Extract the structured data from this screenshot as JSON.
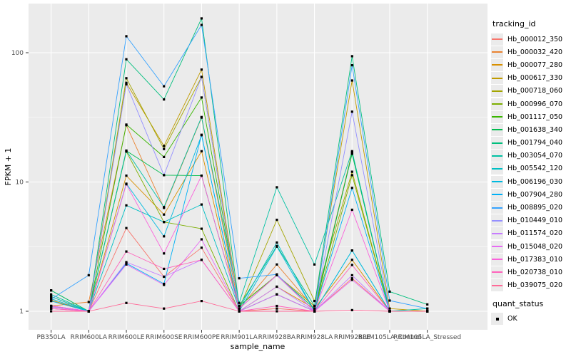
{
  "chart_data": {
    "type": "line",
    "title": "",
    "xlabel": "sample_name",
    "ylabel": "FPKM + 1",
    "y_scale": "log10",
    "y_ticks": [
      1,
      10,
      100
    ],
    "y_minor": [
      3.1623,
      31.623
    ],
    "ylim": [
      0.93,
      230
    ],
    "grid": true,
    "panel_bg": "#ebebeb",
    "grid_color": "#ffffff",
    "marker": "black-square",
    "legend_position": "right",
    "categories": [
      "PB350LA",
      "RRIM600LA",
      "RRIM600LE",
      "RRIM600SE",
      "RRIM600PE",
      "RRIM901LA",
      "RRIM928BA",
      "RRIM928LA",
      "RRIM928LE",
      "RRIM105LA_Control",
      "RRIM105LA_Stressed"
    ],
    "series": [
      {
        "name": "Hb_000012_350",
        "color": "#F8766D",
        "values": [
          1.05,
          1.0,
          4.4,
          1.85,
          3.1,
          1.0,
          1.05,
          1.0,
          1.8,
          1.0,
          1.0
        ]
      },
      {
        "name": "Hb_000032_420",
        "color": "#EA8331",
        "values": [
          1.1,
          1.18,
          27.5,
          6.3,
          31.5,
          1.05,
          2.3,
          1.05,
          17.0,
          1.0,
          1.0
        ]
      },
      {
        "name": "Hb_000077_280",
        "color": "#D89000",
        "values": [
          1.22,
          1.0,
          11.2,
          5.6,
          17.3,
          1.0,
          1.55,
          1.05,
          2.5,
          1.0,
          1.0
        ]
      },
      {
        "name": "Hb_000617_330",
        "color": "#C09B00",
        "values": [
          1.3,
          1.0,
          58.5,
          19.0,
          74.0,
          1.1,
          1.9,
          1.1,
          61.0,
          1.05,
          1.0
        ]
      },
      {
        "name": "Hb_000718_060",
        "color": "#A3A500",
        "values": [
          1.2,
          1.0,
          63.5,
          18.0,
          65.0,
          1.05,
          5.1,
          1.2,
          12.0,
          1.0,
          1.0
        ]
      },
      {
        "name": "Hb_000996_070",
        "color": "#7CAE00",
        "values": [
          1.45,
          1.0,
          17.2,
          4.9,
          4.35,
          1.0,
          1.35,
          1.0,
          11.3,
          1.0,
          1.0
        ]
      },
      {
        "name": "Hb_001117_050",
        "color": "#39B600",
        "values": [
          1.08,
          1.0,
          27.8,
          15.6,
          45.0,
          1.1,
          1.9,
          1.0,
          16.8,
          1.0,
          1.0
        ]
      },
      {
        "name": "Hb_001638_340",
        "color": "#00BB4E",
        "values": [
          1.1,
          1.0,
          17.4,
          11.3,
          11.2,
          1.05,
          1.9,
          1.05,
          16.5,
          1.0,
          1.0
        ]
      },
      {
        "name": "Hb_001794_040",
        "color": "#00BF7D",
        "values": [
          1.45,
          1.0,
          89.0,
          43.5,
          184.0,
          1.1,
          3.2,
          1.1,
          94.0,
          1.42,
          1.13
        ]
      },
      {
        "name": "Hb_003054_070",
        "color": "#00C1A3",
        "values": [
          1.35,
          1.0,
          17.5,
          6.4,
          31.8,
          1.16,
          9.1,
          2.3,
          17.3,
          1.0,
          1.05
        ]
      },
      {
        "name": "Hb_005542_120",
        "color": "#00BFC4",
        "values": [
          1.3,
          1.0,
          6.6,
          4.9,
          6.7,
          1.05,
          3.4,
          1.0,
          2.95,
          1.0,
          1.0
        ]
      },
      {
        "name": "Hb_006196_030",
        "color": "#00BAE0",
        "values": [
          1.25,
          1.0,
          9.7,
          3.8,
          23.0,
          1.0,
          3.16,
          1.0,
          2.95,
          1.0,
          1.0
        ]
      },
      {
        "name": "Hb_007904_280",
        "color": "#00B0F6",
        "values": [
          1.2,
          1.0,
          2.35,
          1.63,
          23.2,
          1.0,
          1.35,
          1.0,
          9.0,
          1.0,
          1.0
        ]
      },
      {
        "name": "Hb_008895_020",
        "color": "#35A2FF",
        "values": [
          1.24,
          1.9,
          134.0,
          55.0,
          164.0,
          1.8,
          1.93,
          1.0,
          80.0,
          1.21,
          1.05
        ]
      },
      {
        "name": "Hb_010449_010",
        "color": "#9590FF",
        "values": [
          1.1,
          1.0,
          57.0,
          11.3,
          65.0,
          1.05,
          1.9,
          1.0,
          35.0,
          1.0,
          1.0
        ]
      },
      {
        "name": "Hb_011574_020",
        "color": "#C77CFF",
        "values": [
          1.08,
          1.0,
          2.4,
          1.85,
          2.5,
          1.0,
          1.55,
          1.0,
          1.9,
          1.0,
          1.0
        ]
      },
      {
        "name": "Hb_015048_020",
        "color": "#E76BF3",
        "values": [
          1.05,
          1.0,
          2.3,
          1.6,
          3.6,
          1.0,
          1.35,
          1.0,
          1.75,
          1.0,
          1.0
        ]
      },
      {
        "name": "Hb_017383_010",
        "color": "#FA62DB",
        "values": [
          1.1,
          1.0,
          9.6,
          2.8,
          11.2,
          1.05,
          1.9,
          1.0,
          6.1,
          1.0,
          1.0
        ]
      },
      {
        "name": "Hb_020738_010",
        "color": "#FF62BC",
        "values": [
          1.05,
          1.0,
          2.9,
          2.13,
          2.5,
          1.0,
          1.1,
          1.0,
          2.28,
          1.0,
          1.0
        ]
      },
      {
        "name": "Hb_039075_020",
        "color": "#FF6A98",
        "values": [
          1.0,
          1.0,
          1.16,
          1.05,
          1.2,
          1.0,
          1.0,
          1.0,
          1.02,
          1.0,
          1.0
        ]
      }
    ]
  },
  "legend": {
    "tracking_title": "tracking_id",
    "quant_title": "quant_status",
    "quant_ok_label": "OK"
  }
}
